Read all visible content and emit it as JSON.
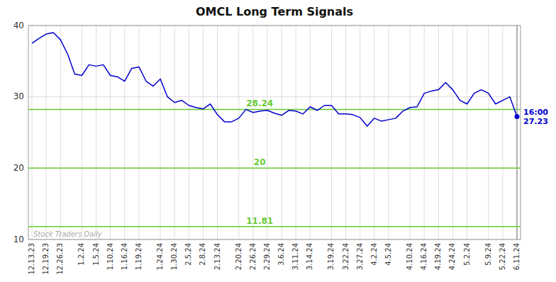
{
  "chart_data": {
    "type": "line",
    "title": "OMCL Long Term Signals",
    "categories": [
      "12.13.23",
      null,
      "12.19.23",
      null,
      "12.26.23",
      null,
      null,
      "1.2.24",
      null,
      "1.5.24",
      null,
      "1.10.24",
      null,
      "1.16.24",
      null,
      "1.19.24",
      null,
      null,
      "1.24.24",
      null,
      "1.30.24",
      null,
      "2.5.24",
      null,
      "2.8.24",
      null,
      "2.13.24",
      null,
      null,
      "2.20.24",
      null,
      "2.26.24",
      null,
      "2.29.24",
      null,
      "3.6.24",
      null,
      "3.11.24",
      null,
      "3.14.24",
      null,
      null,
      "3.19.24",
      null,
      "3.22.24",
      null,
      "3.27.24",
      null,
      "4.2.24",
      null,
      "4.5.24",
      null,
      null,
      "4.10.24",
      null,
      "4.16.24",
      null,
      "4.19.24",
      null,
      "4.24.24",
      null,
      "5.2.24",
      null,
      null,
      "5.9.24",
      null,
      "5.22.24",
      null,
      "6.11.24"
    ],
    "values": [
      37.5,
      38.2,
      38.8,
      39.0,
      38.0,
      36.0,
      33.2,
      33.0,
      34.5,
      34.3,
      34.5,
      33.0,
      32.8,
      32.2,
      34.0,
      34.2,
      32.2,
      31.5,
      32.5,
      30.0,
      29.2,
      29.5,
      28.8,
      28.5,
      28.3,
      29.0,
      27.5,
      26.5,
      26.5,
      27.0,
      28.24,
      27.8,
      28.0,
      28.1,
      27.7,
      27.4,
      28.1,
      28.0,
      27.6,
      28.6,
      28.1,
      28.8,
      28.8,
      27.6,
      27.6,
      27.5,
      27.1,
      25.9,
      27.0,
      26.6,
      26.8,
      27.0,
      28.0,
      28.5,
      28.6,
      30.5,
      30.8,
      31.0,
      32.0,
      31.0,
      29.5,
      29.0,
      30.5,
      31.0,
      30.5,
      29.0,
      29.5,
      30.0,
      27.23
    ],
    "color": "#0000cc",
    "reference_lines": [
      {
        "value": 28.24,
        "label": "28.24",
        "color": "#66cc33"
      },
      {
        "value": 20.0,
        "label": "20",
        "color": "#66cc33"
      },
      {
        "value": 11.81,
        "label": "11.81",
        "color": "#66cc33"
      }
    ],
    "annotation": [
      "16:00",
      "27.23"
    ],
    "watermark": "Stock Traders Daily",
    "ylim": [
      10,
      40
    ],
    "yticks": [
      10,
      20,
      30,
      40
    ],
    "grid": true
  }
}
